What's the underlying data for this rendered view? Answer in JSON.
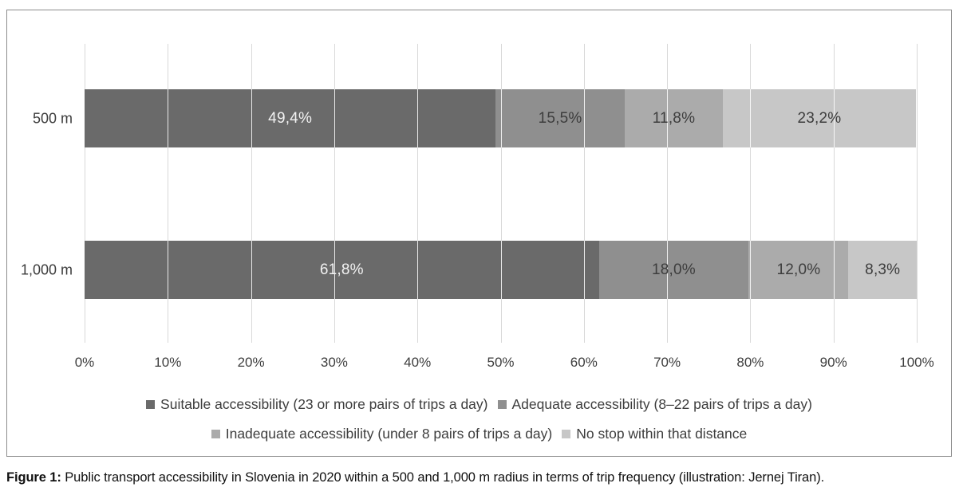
{
  "figure": {
    "caption_label": "Figure 1:",
    "caption_text": " Public transport accessibility in Slovenia in 2020 within a 500 and 1,000 m radius in terms of trip frequency (illustration: Jernej Tiran)."
  },
  "chart_data": {
    "type": "bar",
    "orientation": "horizontal-stacked",
    "title": "",
    "xlabel": "",
    "ylabel": "",
    "xlim": [
      0,
      100
    ],
    "grid": true,
    "legend_position": "bottom",
    "categories": [
      "500 m",
      "1,000 m"
    ],
    "series": [
      {
        "name": "Suitable accessibility (23 or more pairs of trips a day)",
        "values": [
          49.4,
          61.8
        ],
        "labels": [
          "49,4%",
          "61,8%"
        ],
        "color": "#6a6a6a",
        "label_color": "#f2f2f2"
      },
      {
        "name": "Adequate accessibility (8–22 pairs of trips a day)",
        "values": [
          15.5,
          18.0
        ],
        "labels": [
          "15,5%",
          "18,0%"
        ],
        "color": "#8f8f8f",
        "label_color": "#3d3d3d"
      },
      {
        "name": "Inadequate accessibility (under 8 pairs of trips a day)",
        "values": [
          11.8,
          12.0
        ],
        "labels": [
          "11,8%",
          "12,0%"
        ],
        "color": "#ababab",
        "label_color": "#3d3d3d"
      },
      {
        "name": "No stop within that distance",
        "values": [
          23.2,
          8.3
        ],
        "labels": [
          "23,2%",
          "8,3%"
        ],
        "color": "#c7c7c7",
        "label_color": "#3d3d3d"
      }
    ],
    "x_ticks": [
      "0%",
      "10%",
      "20%",
      "30%",
      "40%",
      "50%",
      "60%",
      "70%",
      "80%",
      "90%",
      "100%"
    ],
    "legend_rows": [
      [
        0,
        1
      ],
      [
        2,
        3
      ]
    ],
    "colors": {
      "gridline": "#d9d9d9",
      "box_border": "#8c8c8c",
      "axis_text": "#3d3d3d"
    }
  }
}
